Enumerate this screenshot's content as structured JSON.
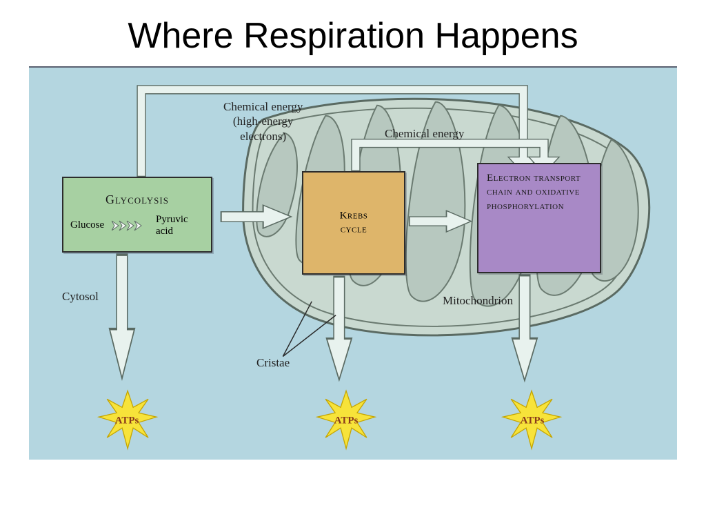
{
  "title": "Where Respiration Happens",
  "diagram": {
    "background": "#b4d6e0",
    "mitochondrion": {
      "outer_fill": "#c9d9d0",
      "outer_stroke": "#5a6a62",
      "inner_stroke": "#6a7a70",
      "crista_fill": "#b7c8bf"
    },
    "labels": {
      "chemical_energy_top": "Chemical energy\n(high-energy\nelectrons)",
      "chemical_energy_mid": "Chemical energy",
      "cytosol": "Cytosol",
      "cristae": "Cristae",
      "mitochondrion": "Mitochondrion",
      "font_size": 17
    },
    "glycolysis": {
      "title": "Glycolysis",
      "left": "Glucose",
      "right": "Pyruvic acid",
      "bg": "#a7d0a2",
      "border": "#2c2c2c"
    },
    "krebs": {
      "title": "Krebs cycle",
      "bg": "#deb56a",
      "border": "#2c2c2c"
    },
    "etc": {
      "title": "Electron transport chain and oxidative phosphorylation",
      "bg": "#a889c6",
      "border": "#2c2c2c"
    },
    "atp": {
      "label": "ATPs",
      "fill": "#f7e33a",
      "stroke": "#c5a500",
      "text_color": "#8a3a1a"
    },
    "arrows": {
      "fill_light": "#e8f2ee",
      "stroke": "#5a6a62"
    }
  }
}
